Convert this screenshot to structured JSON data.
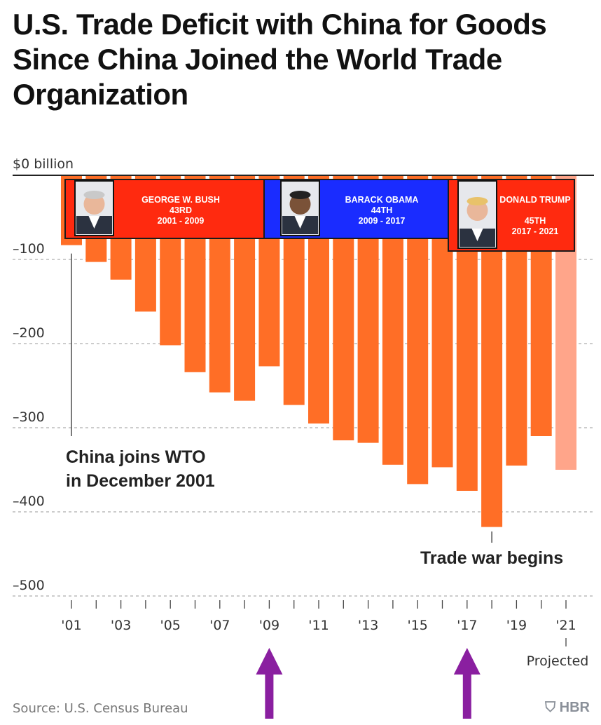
{
  "chart_data": {
    "type": "bar",
    "title": "U.S. Trade Deficit with China for Goods Since China Joined the World Trade Organization",
    "y_unit_label": "$0 billion",
    "yticks": [
      0,
      -100,
      -200,
      -300,
      -400,
      -500
    ],
    "ytick_labels": [
      "$0 billion",
      "–100",
      "–200",
      "–300",
      "–400",
      "–500"
    ],
    "ylim": [
      -500,
      0
    ],
    "grid": true,
    "categories": [
      "2001",
      "2002",
      "2003",
      "2004",
      "2005",
      "2006",
      "2007",
      "2008",
      "2009",
      "2010",
      "2011",
      "2012",
      "2013",
      "2014",
      "2015",
      "2016",
      "2017",
      "2018",
      "2019",
      "2020",
      "2021"
    ],
    "x_tick_labels": [
      "'01",
      "",
      "'03",
      "",
      "'05",
      "",
      "'07",
      "",
      "'09",
      "",
      "'11",
      "",
      "'13",
      "",
      "'15",
      "",
      "'17",
      "",
      "'19",
      "",
      "'21"
    ],
    "values": [
      -83,
      -103,
      -124,
      -162,
      -202,
      -234,
      -258,
      -268,
      -227,
      -273,
      -295,
      -315,
      -318,
      -344,
      -367,
      -347,
      -375,
      -418,
      -345,
      -310,
      -350
    ],
    "projected_index": 20,
    "colors": {
      "bar": "#ff6e26",
      "projected": "#ffa58a",
      "grid": "#9a9a9a",
      "axis": "#222222"
    },
    "annotations": [
      {
        "lines": [
          "China joins WTO",
          "in December 2001"
        ],
        "category": "2001"
      },
      {
        "lines": [
          "Trade war begins"
        ],
        "category": "2018"
      },
      {
        "lines": [
          "Projected"
        ],
        "category": "2021"
      }
    ],
    "presidents": [
      {
        "name": "GEORGE W. BUSH",
        "ordinal": "43RD",
        "term": "2001 - 2009",
        "color": "#ff2a0f",
        "photo_icon": "bush-portrait-icon"
      },
      {
        "name": "BARACK OBAMA",
        "ordinal": "44TH",
        "term": "2009 - 2017",
        "color": "#1a2cff",
        "photo_icon": "obama-portrait-icon"
      },
      {
        "name": "DONALD TRUMP",
        "ordinal": "45TH",
        "term": "2017 - 2021",
        "color": "#ff2a0f",
        "photo_icon": "trump-portrait-icon"
      }
    ],
    "arrow_color": "#8a1fa0",
    "arrow_categories": [
      "2009",
      "2017"
    ]
  },
  "source": "Source: U.S. Census Bureau",
  "brand": "HBR"
}
